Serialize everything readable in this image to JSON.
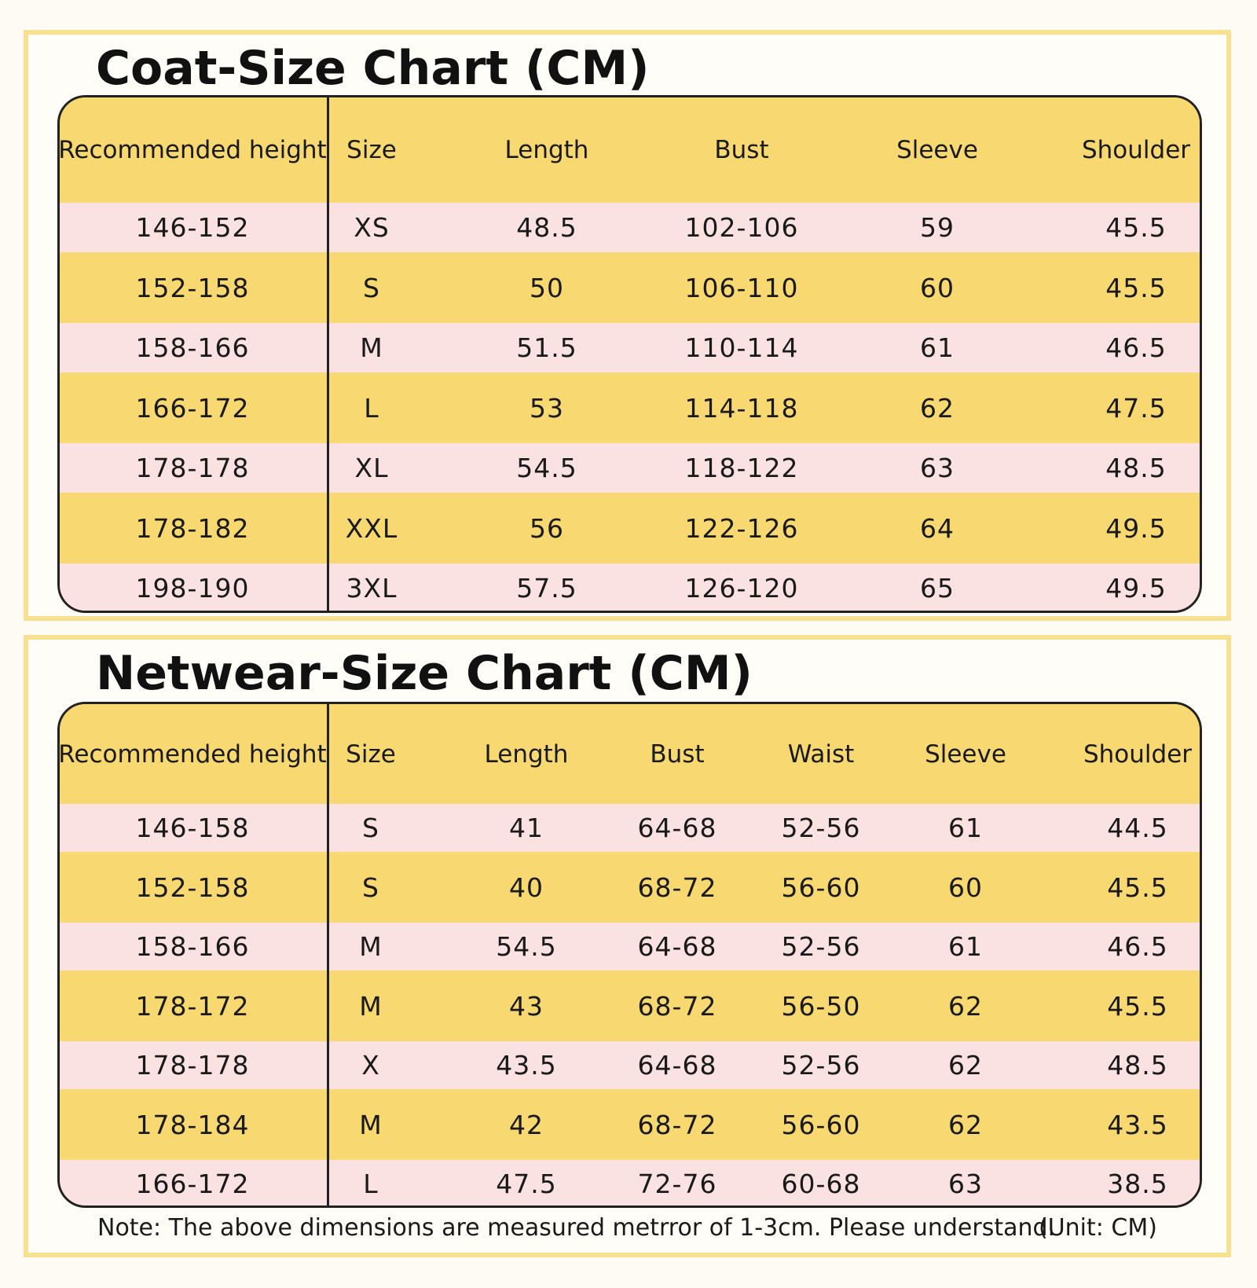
{
  "tables": [
    {
      "title": "Coat-Size Chart (CM)",
      "columns": [
        "Recommended height",
        "Size",
        "Length",
        "Bust",
        "Sleeve",
        "Shoulder"
      ],
      "rows": [
        [
          "146-152",
          "XS",
          "48.5",
          "102-106",
          "59",
          "45.5"
        ],
        [
          "152-158",
          "S",
          "50",
          "106-110",
          "60",
          "45.5"
        ],
        [
          "158-166",
          "M",
          "51.5",
          "110-114",
          "61",
          "46.5"
        ],
        [
          "166-172",
          "L",
          "53",
          "114-118",
          "62",
          "47.5"
        ],
        [
          "178-178",
          "XL",
          "54.5",
          "118-122",
          "63",
          "48.5"
        ],
        [
          "178-182",
          "XXL",
          "56",
          "122-126",
          "64",
          "49.5"
        ],
        [
          "198-190",
          "3XL",
          "57.5",
          "126-120",
          "65",
          "49.5"
        ]
      ]
    },
    {
      "title": "Netwear-Size Chart (CM)",
      "columns": [
        "Recommended height",
        "Size",
        "Length",
        "Bust",
        "Waist",
        "Sleeve",
        "Shoulder"
      ],
      "rows": [
        [
          "146-158",
          "S",
          "41",
          "64-68",
          "52-56",
          "61",
          "44.5"
        ],
        [
          "152-158",
          "S",
          "40",
          "68-72",
          "56-60",
          "60",
          "45.5"
        ],
        [
          "158-166",
          "M",
          "54.5",
          "64-68",
          "52-56",
          "61",
          "46.5"
        ],
        [
          "178-172",
          "M",
          "43",
          "68-72",
          "56-50",
          "62",
          "45.5"
        ],
        [
          "178-178",
          "X",
          "43.5",
          "64-68",
          "52-56",
          "62",
          "48.5"
        ],
        [
          "178-184",
          "M",
          "42",
          "68-72",
          "56-60",
          "62",
          "43.5"
        ],
        [
          "166-172",
          "L",
          "47.5",
          "72-76",
          "60-68",
          "63",
          "38.5"
        ]
      ]
    }
  ],
  "note": "Note: The above dimensions are measured metrror of 1-3cm. Please understand.",
  "unit": "(Unit: CM)"
}
